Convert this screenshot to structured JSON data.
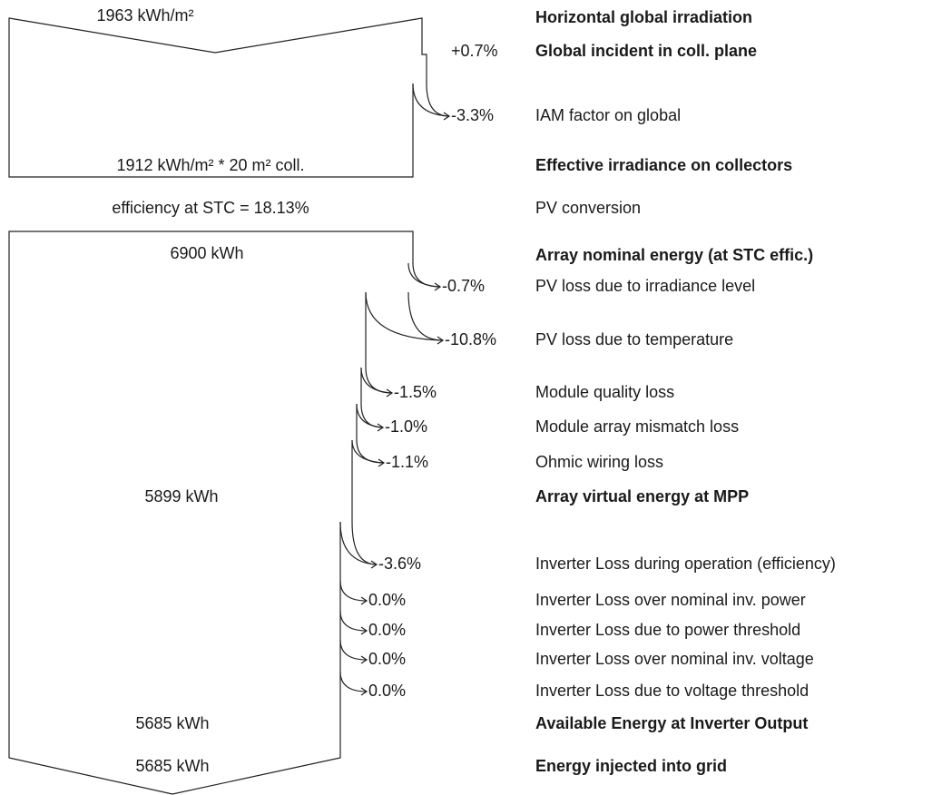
{
  "top_input": "1963 kWh/m²",
  "effective": "1912 kWh/m² * 20 m² coll.",
  "efficiency": "efficiency at STC = 18.13%",
  "nominal": "6900 kWh",
  "mpp": "5899 kWh",
  "available": "5685 kWh",
  "injected": "5685 kWh",
  "steps": [
    {
      "label": "Horizontal global irradiation"
    },
    {
      "label": "Global incident in coll. plane",
      "value": "+0.7%"
    },
    {
      "label": "IAM factor on global",
      "value": "-3.3%"
    },
    {
      "label": "Effective irradiance on collectors"
    },
    {
      "label": "PV conversion"
    },
    {
      "label": "Array nominal energy (at STC effic.)"
    },
    {
      "label": "PV loss due to irradiance level",
      "value": "-0.7%"
    },
    {
      "label": "PV loss due to temperature",
      "value": "-10.8%"
    },
    {
      "label": "Module quality loss",
      "value": "-1.5%"
    },
    {
      "label": "Module array mismatch loss",
      "value": "-1.0%"
    },
    {
      "label": "Ohmic wiring loss",
      "value": "-1.1%"
    },
    {
      "label": "Array virtual energy at MPP"
    },
    {
      "label": "Inverter Loss during operation (efficiency)",
      "value": "-3.6%"
    },
    {
      "label": "Inverter Loss over nominal inv. power",
      "value": "0.0%"
    },
    {
      "label": "Inverter Loss due to power threshold",
      "value": "0.0%"
    },
    {
      "label": "Inverter Loss over nominal inv. voltage",
      "value": "0.0%"
    },
    {
      "label": "Inverter Loss due to voltage threshold",
      "value": "0.0%"
    },
    {
      "label": "Available Energy at Inverter Output"
    },
    {
      "label": "Energy injected into grid"
    }
  ]
}
